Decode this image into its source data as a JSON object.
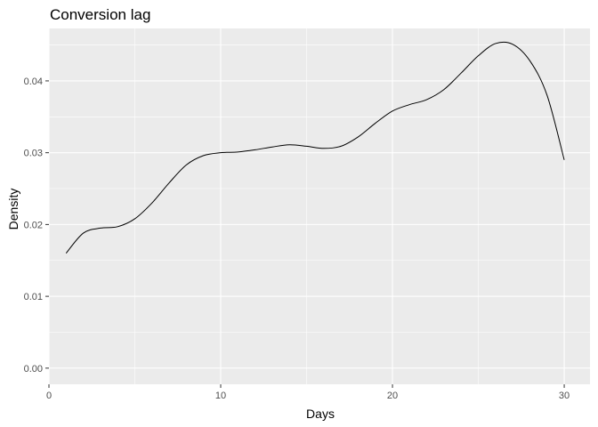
{
  "chart_data": {
    "type": "line",
    "title": "Conversion lag",
    "xlabel": "Days",
    "ylabel": "Density",
    "xlim": [
      0,
      31.5
    ],
    "ylim": [
      -0.00225,
      0.0473
    ],
    "x_ticks": [
      0,
      10,
      20,
      30
    ],
    "x_tick_labels": [
      "0",
      "10",
      "20",
      "30"
    ],
    "y_ticks": [
      0.0,
      0.01,
      0.02,
      0.03,
      0.04
    ],
    "y_tick_labels": [
      "0.00",
      "0.01",
      "0.02",
      "0.03",
      "0.04"
    ],
    "grid": true,
    "legend": "none",
    "colors": {
      "panel": "#ebebeb",
      "grid": "#ffffff",
      "line": "#000000",
      "tick_text": "#4d4d4d"
    },
    "series": [
      {
        "x": [
          1,
          2,
          3,
          4,
          5,
          6,
          7,
          8,
          9,
          10,
          11,
          12,
          13,
          14,
          15,
          16,
          17,
          18,
          19,
          20,
          21,
          22,
          23,
          24,
          25,
          26,
          27,
          28,
          29,
          30
        ],
        "y": [
          0.016,
          0.0188,
          0.0195,
          0.0197,
          0.0208,
          0.023,
          0.0258,
          0.0283,
          0.0296,
          0.03,
          0.0301,
          0.0304,
          0.0308,
          0.0311,
          0.0309,
          0.0306,
          0.0309,
          0.0322,
          0.0341,
          0.0358,
          0.0367,
          0.0374,
          0.0388,
          0.0411,
          0.0435,
          0.0452,
          0.0451,
          0.0428,
          0.038,
          0.029
        ]
      }
    ]
  }
}
